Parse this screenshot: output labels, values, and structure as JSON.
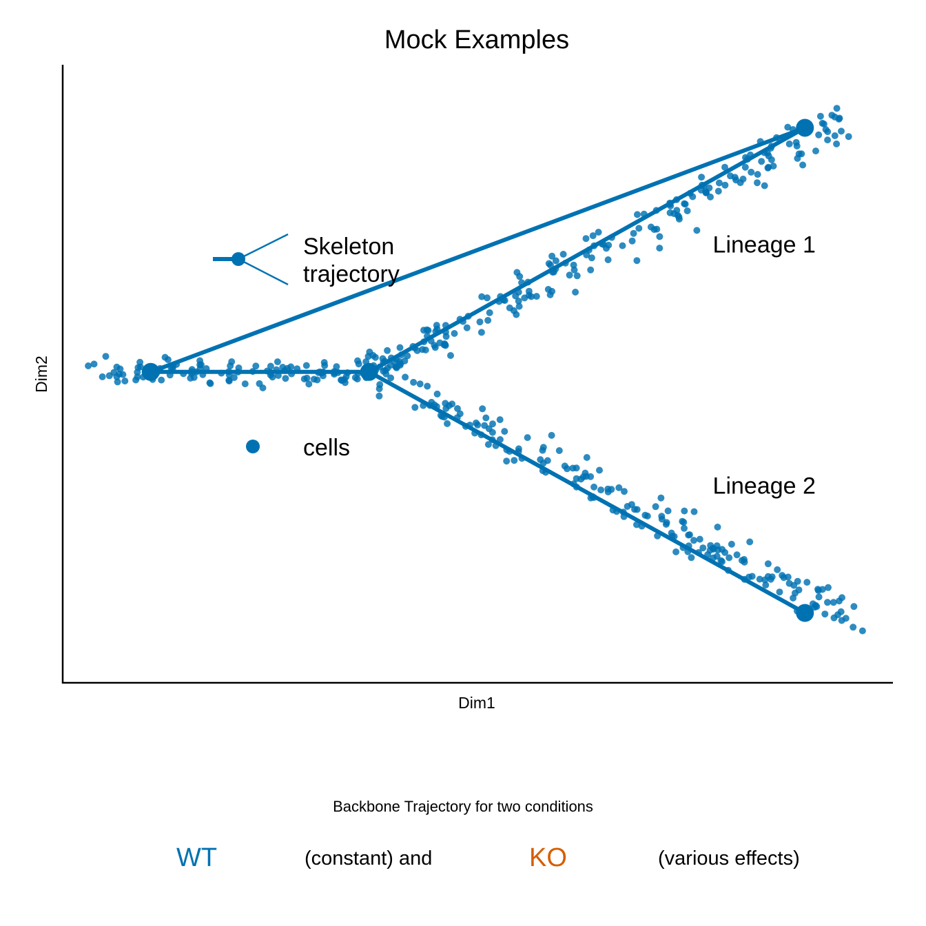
{
  "colors": {
    "wt": "#0072B2",
    "ko": "#D55E00",
    "axis": "#000000",
    "text": "#000000"
  },
  "chart_data": {
    "type": "scatter",
    "title": "Mock Examples",
    "xlabel": "Dim1",
    "ylabel": "Dim2",
    "xlim": [
      0,
      100
    ],
    "ylim": [
      0,
      100
    ],
    "axis_ticks": false,
    "grid": false,
    "trajectory_nodes": {
      "root": [
        10.6,
        50.3
      ],
      "branch": [
        36.9,
        50.3
      ],
      "lineage1_end": [
        89.4,
        89.8
      ],
      "lineage2_end": [
        89.4,
        11.3
      ]
    },
    "trajectory_edges": [
      [
        "root",
        "branch"
      ],
      [
        "branch",
        "lineage1_end"
      ],
      [
        "branch",
        "lineage2_end"
      ],
      [
        "root",
        "lineage1_end"
      ]
    ],
    "cell_clusters": [
      {
        "segment": "root-branch",
        "from": [
          4.5,
          50.3
        ],
        "to": [
          38.5,
          50.3
        ],
        "spread": 2.2,
        "n": 120
      },
      {
        "segment": "lineage1",
        "from": [
          36.9,
          50.3
        ],
        "to": [
          95.5,
          91.5
        ],
        "spread": 3.3,
        "n": 200
      },
      {
        "segment": "lineage2",
        "from": [
          36.9,
          50.3
        ],
        "to": [
          95.5,
          10.5
        ],
        "spread": 3.3,
        "n": 200
      }
    ],
    "annotations": [
      {
        "text": "Lineage 1",
        "x": 84.5,
        "y": 69.6
      },
      {
        "text": "Lineage 2",
        "x": 84.5,
        "y": 30.6
      }
    ],
    "inline_legend": [
      {
        "label": "Skeleton trajectory",
        "symbol": "trajectory"
      },
      {
        "label": "cells",
        "symbol": "point"
      }
    ]
  },
  "legend_labels": {
    "skeleton": [
      "Skeleton",
      "trajectory"
    ],
    "cells": "cells"
  },
  "caption": {
    "title": "Backbone Trajectory for two conditions",
    "wt": "WT",
    "middle": "(constant) and",
    "ko": "KO",
    "end": "(various effects)"
  }
}
